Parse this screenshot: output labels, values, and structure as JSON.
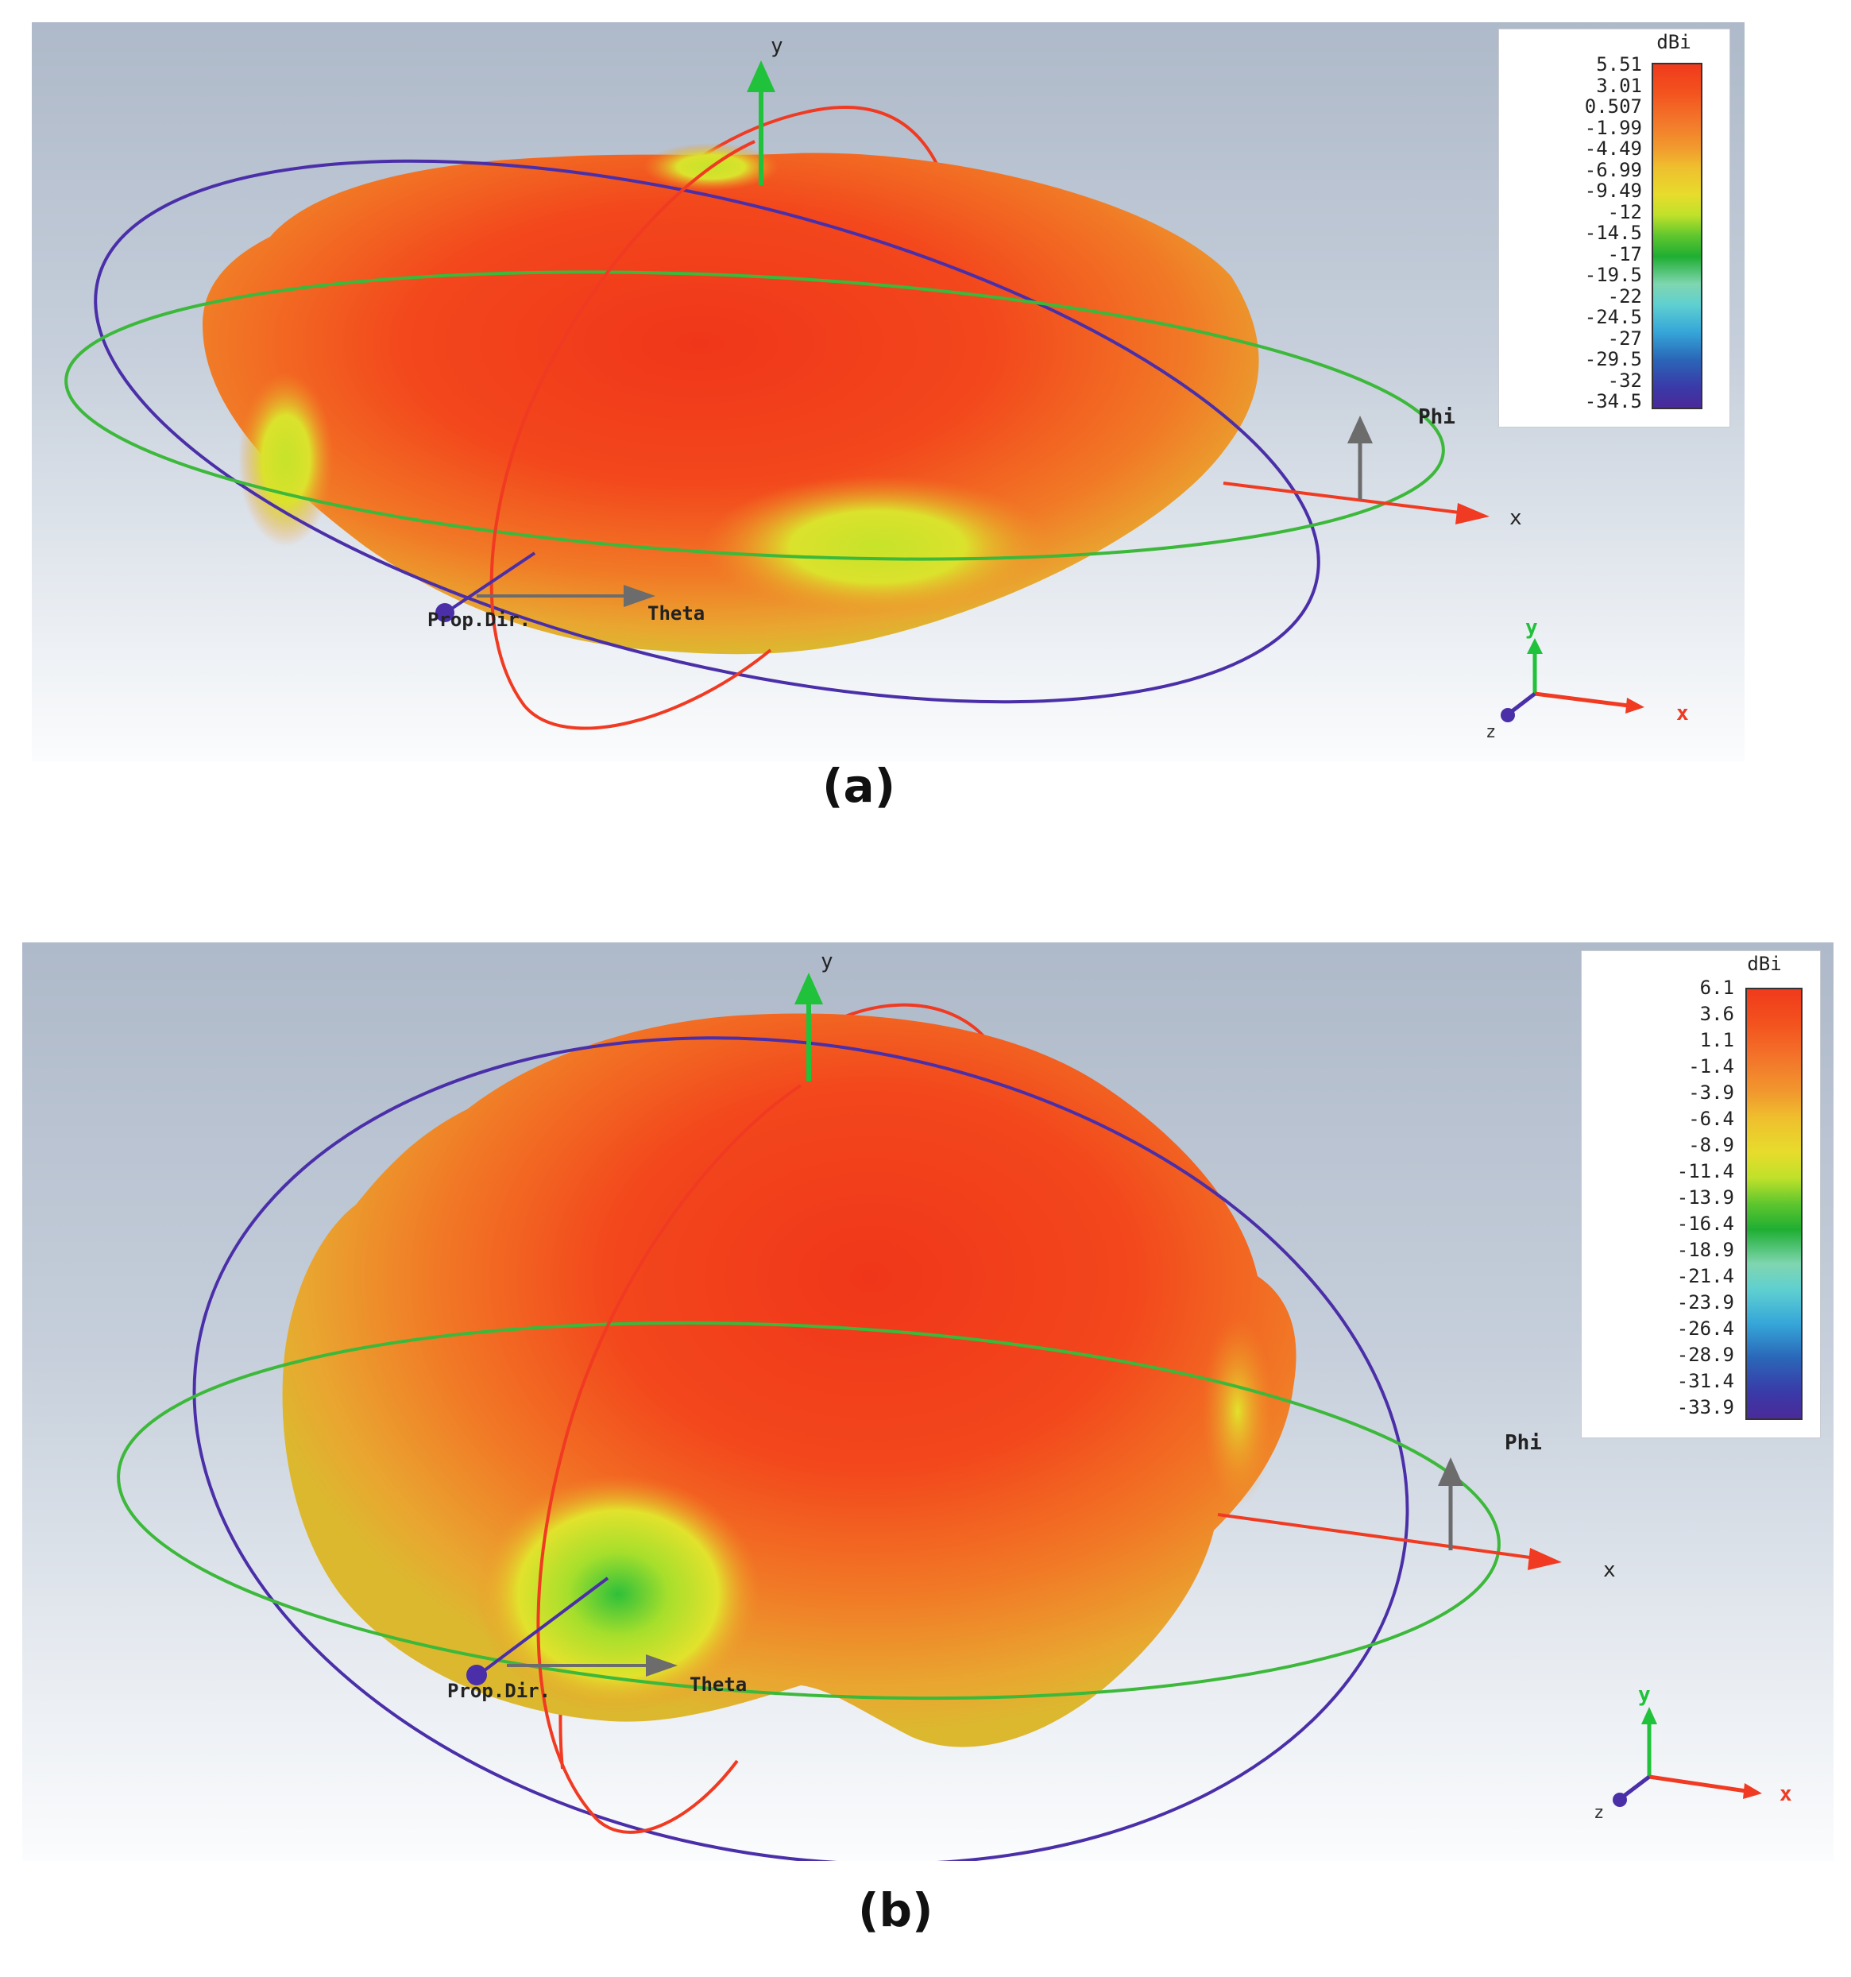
{
  "panels": [
    {
      "id": "a",
      "caption": "(a)",
      "axis_labels": {
        "y": "y",
        "x": "x",
        "phi": "Phi",
        "theta": "Theta",
        "prop_dir": "Prop.Dir."
      },
      "triad_labels": {
        "y": "y",
        "x": "x",
        "z": "z"
      },
      "legend": {
        "unit": "dBi",
        "ticks": [
          "5.51",
          "3.01",
          "0.507",
          "-1.99",
          "-4.49",
          "-6.99",
          "-9.49",
          "-12",
          "-14.5",
          "-17",
          "-19.5",
          "-22",
          "-24.5",
          "-27",
          "-29.5",
          "-32",
          "-34.5"
        ]
      }
    },
    {
      "id": "b",
      "caption": "(b)",
      "axis_labels": {
        "y": "y",
        "x": "x",
        "phi": "Phi",
        "theta": "Theta",
        "prop_dir": "Prop.Dir."
      },
      "triad_labels": {
        "y": "y",
        "x": "x",
        "z": "z"
      },
      "legend": {
        "unit": "dBi",
        "ticks": [
          "6.1",
          "3.6",
          "1.1",
          "-1.4",
          "-3.9",
          "-6.4",
          "-8.9",
          "-11.4",
          "-13.9",
          "-16.4",
          "-18.9",
          "-21.4",
          "-23.9",
          "-26.4",
          "-28.9",
          "-31.4",
          "-33.9"
        ]
      }
    }
  ],
  "colors": {
    "pattern_main": "#f24a1c",
    "pattern_mid": "#f07a28",
    "pattern_low": "#d9e22a",
    "x_axis": "#f03a22",
    "y_axis": "#1fc23a",
    "phi_arrow": "#6c6c6c",
    "theta_arrow": "#6c6c6c",
    "prop_dir": "#4a2fa8",
    "ring_blue": "#4a2fa8",
    "ring_green": "#3cb83a",
    "ring_red": "#f03a22"
  }
}
